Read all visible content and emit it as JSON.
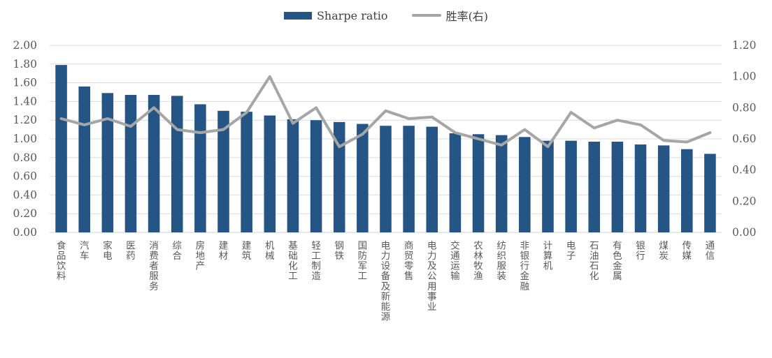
{
  "colors": {
    "bar": "#255584",
    "line": "#A6A6A6",
    "grid": "#DCDCDC",
    "axis_line": "#D0D0D0",
    "axis_text": "#595959",
    "legend_text": "#404040",
    "background": "#FFFFFF"
  },
  "legend": {
    "items": [
      {
        "label": "Sharpe ratio",
        "swatch": "bar"
      },
      {
        "label": "胜率(右)",
        "swatch": "line"
      }
    ]
  },
  "chart_data": {
    "type": "bar",
    "title": "",
    "xlabel": "",
    "ylabel_left": "",
    "ylabel_right": "",
    "grid": true,
    "legend_position": "top-center",
    "categories": [
      "食品饮料",
      "汽车",
      "家电",
      "医药",
      "消费者服务",
      "综合",
      "房地产",
      "建材",
      "建筑",
      "机械",
      "基础化工",
      "轻工制造",
      "钢铁",
      "国防军工",
      "电力设备及新能源",
      "商贸零售",
      "电力及公用事业",
      "交通运输",
      "农林牧渔",
      "纺织服装",
      "非银行金融",
      "计算机",
      "电子",
      "石油石化",
      "有色金属",
      "银行",
      "煤炭",
      "传媒",
      "通信"
    ],
    "series": [
      {
        "name": "Sharpe ratio",
        "type": "bar",
        "axis": "left",
        "values": [
          1.79,
          1.56,
          1.49,
          1.47,
          1.47,
          1.46,
          1.37,
          1.3,
          1.29,
          1.25,
          1.21,
          1.2,
          1.18,
          1.16,
          1.14,
          1.14,
          1.13,
          1.06,
          1.05,
          1.04,
          1.02,
          0.98,
          0.98,
          0.97,
          0.97,
          0.94,
          0.93,
          0.89,
          0.84
        ]
      },
      {
        "name": "胜率(右)",
        "type": "line",
        "axis": "right",
        "values": [
          0.73,
          0.69,
          0.73,
          0.68,
          0.8,
          0.66,
          0.64,
          0.66,
          0.77,
          1.0,
          0.7,
          0.8,
          0.55,
          0.63,
          0.78,
          0.73,
          0.74,
          0.64,
          0.6,
          0.56,
          0.66,
          0.55,
          0.77,
          0.67,
          0.72,
          0.69,
          0.59,
          0.58,
          0.64
        ]
      }
    ],
    "left_axis": {
      "min": 0,
      "max": 2.0,
      "step": 0.2,
      "ticks": [
        "0.00",
        "0.20",
        "0.40",
        "0.60",
        "0.80",
        "1.00",
        "1.20",
        "1.40",
        "1.60",
        "1.80",
        "2.00"
      ]
    },
    "right_axis": {
      "min": 0,
      "max": 1.2,
      "step": 0.2,
      "ticks": [
        "0.00",
        "0.20",
        "0.40",
        "0.60",
        "0.80",
        "1.00",
        "1.20"
      ]
    }
  }
}
